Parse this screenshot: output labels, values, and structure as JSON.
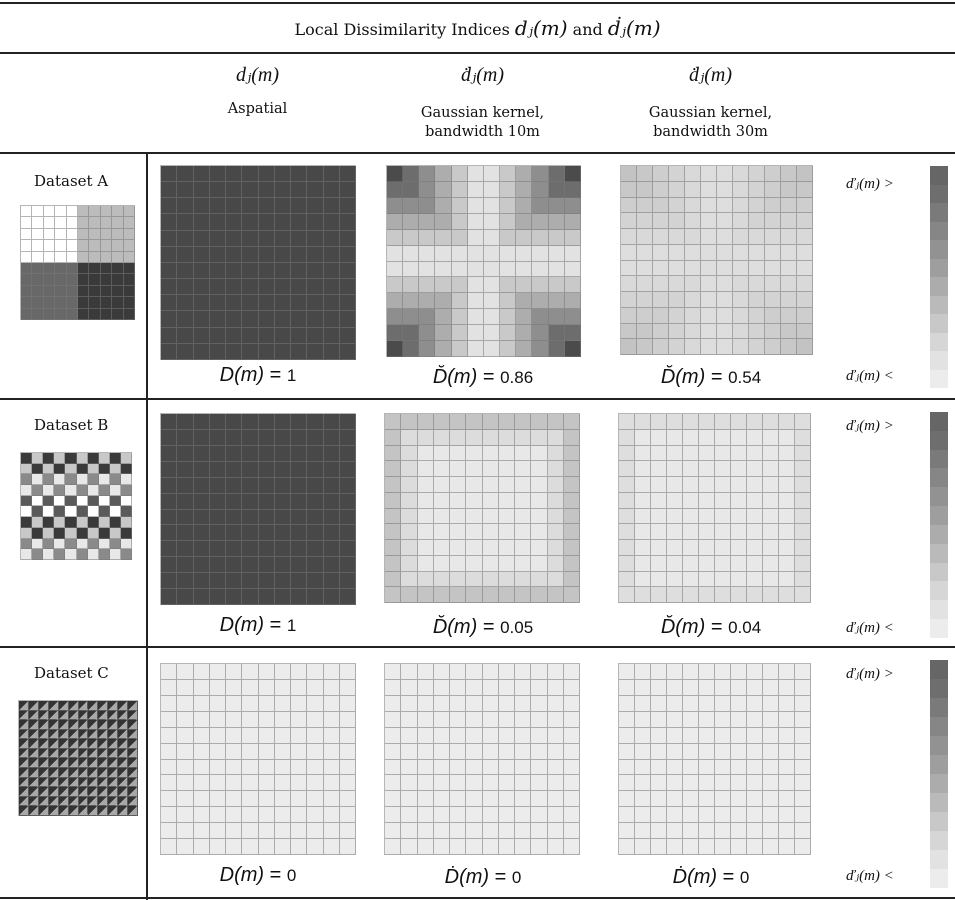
{
  "table": {
    "title_prefix": "Local Dissimilarity Indices",
    "title_sym1": "dⱼ(m)",
    "title_and": "and",
    "title_sym2": "ḋⱼ(m)"
  },
  "columns": [
    {
      "symbol": "dⱼ(m)",
      "line1": "Aspatial",
      "line2": ""
    },
    {
      "symbol": "ḋⱼ(m)",
      "line1": "Gaussian kernel,",
      "line2": "bandwidth 10m"
    },
    {
      "symbol": "ḋⱼ(m)",
      "line1": "Gaussian kernel,",
      "line2": "bandwidth 30m"
    }
  ],
  "legend": {
    "high_label": "ďⱼ(m) >",
    "low_label": "ďⱼ(m) <",
    "shades": [
      "#666666",
      "#6e6e6e",
      "#7a7a7a",
      "#868686",
      "#929292",
      "#9e9e9e",
      "#acacac",
      "#bababa",
      "#c8c8c8",
      "#d6d6d6",
      "#e2e2e2",
      "#ececec"
    ]
  },
  "rows": [
    {
      "label": "Dataset A",
      "formulas": [
        {
          "lhs": "D(m)",
          "value": "1"
        },
        {
          "lhs": "D̆(m)",
          "value": "0.86"
        },
        {
          "lhs": "D̆(m)",
          "value": "0.54"
        }
      ]
    },
    {
      "label": "Dataset B",
      "formulas": [
        {
          "lhs": "D(m)",
          "value": "1"
        },
        {
          "lhs": "D̆(m)",
          "value": "0.05"
        },
        {
          "lhs": "D̆(m)",
          "value": "0.04"
        }
      ]
    },
    {
      "label": "Dataset C",
      "formulas": [
        {
          "lhs": "D(m)",
          "value": "0"
        },
        {
          "lhs": "Ḋ(m)",
          "value": "0"
        },
        {
          "lhs": "Ḋ(m)",
          "value": "0"
        }
      ]
    }
  ]
}
